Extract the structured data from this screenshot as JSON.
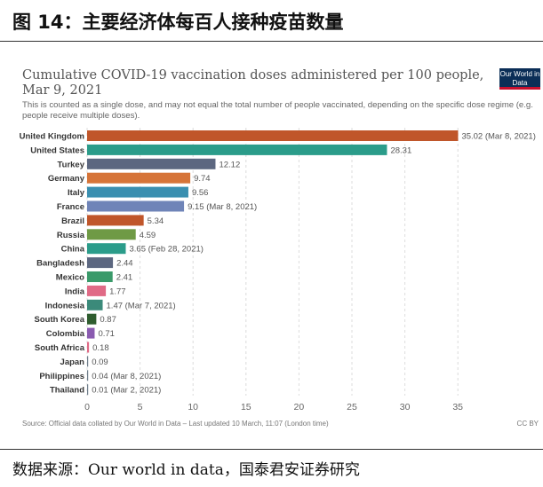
{
  "figure": {
    "title": "图 14：主要经济体每百人接种疫苗数量",
    "footnote": "数据来源：Our world in data，国泰君安证券研究"
  },
  "chart_header": {
    "title": "Cumulative COVID-19 vaccination doses administered per 100 people, Mar 9, 2021",
    "subtitle": "This is counted as a single dose, and may not equal the total number of people vaccinated, depending on the specific dose regime (e.g. people receive multiple doses).",
    "logo_text": "Our World in Data",
    "source": "Source: Official data collated by Our World in Data – Last updated 10 March, 11:07 (London time)",
    "license": "CC BY"
  },
  "chart_data": {
    "type": "bar",
    "orientation": "horizontal",
    "categories": [
      "United Kingdom",
      "United States",
      "Turkey",
      "Germany",
      "Italy",
      "France",
      "Brazil",
      "Russia",
      "China",
      "Bangladesh",
      "Mexico",
      "India",
      "Indonesia",
      "South Korea",
      "Colombia",
      "South Africa",
      "Japan",
      "Philippines",
      "Thailand"
    ],
    "values": [
      35.02,
      28.31,
      12.12,
      9.74,
      9.56,
      9.15,
      5.34,
      4.59,
      3.65,
      2.44,
      2.41,
      1.77,
      1.47,
      0.87,
      0.71,
      0.18,
      0.09,
      0.04,
      0.01
    ],
    "value_labels": [
      "35.02 (Mar 8, 2021)",
      "28.31",
      "12.12",
      "9.74",
      "9.56",
      "9.15 (Mar 8, 2021)",
      "5.34",
      "4.59",
      "3.65 (Feb 28, 2021)",
      "2.44",
      "2.41",
      "1.77",
      "1.47 (Mar 7, 2021)",
      "0.87",
      "0.71",
      "0.18",
      "0.09",
      "0.04 (Mar 8, 2021)",
      "0.01 (Mar 2, 2021)"
    ],
    "colors": [
      "#c0562a",
      "#2b9c8a",
      "#5c6780",
      "#d67438",
      "#3a8fb0",
      "#6f84b8",
      "#c0562a",
      "#6f9a45",
      "#2b9c8a",
      "#5c6780",
      "#3a9a6a",
      "#e06a86",
      "#3b8a7a",
      "#2f5d2f",
      "#8a5bb0",
      "#e06a86",
      "#6e7d8a",
      "#6e7d8a",
      "#6e7d8a"
    ],
    "xticks": [
      0,
      5,
      10,
      15,
      20,
      25,
      30,
      35
    ],
    "xlim": [
      0,
      35
    ],
    "grid": "vertical dashed"
  }
}
